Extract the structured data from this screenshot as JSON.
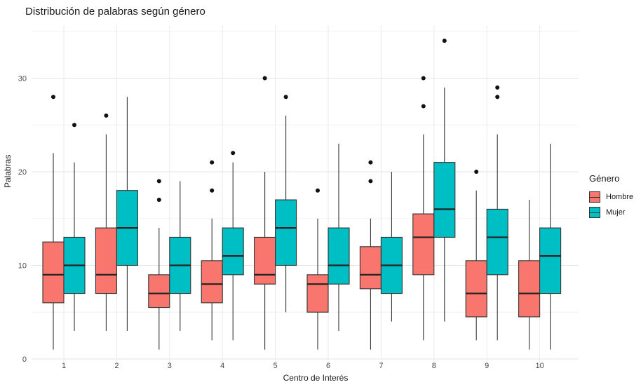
{
  "chart_data": {
    "type": "boxplot",
    "title": "Distribución de palabras según género",
    "xlabel": "Centro de Interés",
    "ylabel": "Palabras",
    "categories": [
      "1",
      "2",
      "3",
      "4",
      "5",
      "6",
      "7",
      "8",
      "9",
      "10"
    ],
    "yticks": [
      0,
      10,
      20,
      30
    ],
    "ylim": [
      0,
      35
    ],
    "grid": true,
    "legend": {
      "title": "Género",
      "position": "right"
    },
    "series": [
      {
        "name": "Hombre",
        "color": "#F8766D",
        "boxes": [
          {
            "min": 1,
            "q1": 6,
            "median": 9,
            "q3": 12.5,
            "max": 22,
            "outliers": [
              28
            ]
          },
          {
            "min": 3,
            "q1": 7,
            "median": 9,
            "q3": 14,
            "max": 24,
            "outliers": [
              26
            ]
          },
          {
            "min": 1,
            "q1": 5.5,
            "median": 7,
            "q3": 9,
            "max": 14,
            "outliers": [
              17,
              19
            ]
          },
          {
            "min": 2,
            "q1": 6,
            "median": 8,
            "q3": 10.5,
            "max": 15,
            "outliers": [
              18,
              21
            ]
          },
          {
            "min": 1,
            "q1": 8,
            "median": 9,
            "q3": 13,
            "max": 20,
            "outliers": [
              30
            ]
          },
          {
            "min": 1,
            "q1": 5,
            "median": 8,
            "q3": 9,
            "max": 15,
            "outliers": [
              18
            ]
          },
          {
            "min": 1,
            "q1": 7.5,
            "median": 9,
            "q3": 12,
            "max": 15,
            "outliers": [
              19,
              21
            ]
          },
          {
            "min": 2,
            "q1": 9,
            "median": 13,
            "q3": 15.5,
            "max": 24,
            "outliers": [
              27,
              30
            ]
          },
          {
            "min": 2,
            "q1": 4.5,
            "median": 7,
            "q3": 10.5,
            "max": 18,
            "outliers": [
              20
            ]
          },
          {
            "min": 1,
            "q1": 4.5,
            "median": 7,
            "q3": 10.5,
            "max": 17,
            "outliers": []
          }
        ]
      },
      {
        "name": "Mujer",
        "color": "#00BFC4",
        "boxes": [
          {
            "min": 3,
            "q1": 7,
            "median": 10,
            "q3": 13,
            "max": 21,
            "outliers": [
              25
            ]
          },
          {
            "min": 3,
            "q1": 10,
            "median": 14,
            "q3": 18,
            "max": 28,
            "outliers": []
          },
          {
            "min": 3,
            "q1": 7,
            "median": 10,
            "q3": 13,
            "max": 19,
            "outliers": []
          },
          {
            "min": 2,
            "q1": 9,
            "median": 11,
            "q3": 14,
            "max": 21,
            "outliers": [
              22
            ]
          },
          {
            "min": 5,
            "q1": 10,
            "median": 14,
            "q3": 17,
            "max": 26,
            "outliers": [
              28
            ]
          },
          {
            "min": 3,
            "q1": 8,
            "median": 10,
            "q3": 14,
            "max": 23,
            "outliers": []
          },
          {
            "min": 4,
            "q1": 7,
            "median": 10,
            "q3": 13,
            "max": 20,
            "outliers": []
          },
          {
            "min": 4,
            "q1": 13,
            "median": 16,
            "q3": 21,
            "max": 29,
            "outliers": [
              34
            ]
          },
          {
            "min": 2,
            "q1": 9,
            "median": 13,
            "q3": 16,
            "max": 24,
            "outliers": [
              28,
              29
            ]
          },
          {
            "min": 1,
            "q1": 7,
            "median": 11,
            "q3": 14,
            "max": 23,
            "outliers": []
          }
        ]
      }
    ]
  }
}
